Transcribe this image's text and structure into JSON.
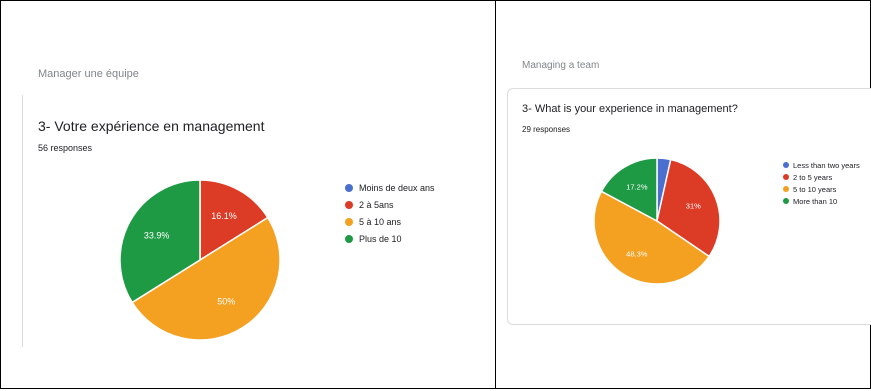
{
  "chart_data": [
    {
      "type": "pie",
      "section": "Manager une équipe",
      "title": "3- Votre expérience en management",
      "responses": "56 responses",
      "legend": [
        "Moins de deux ans",
        "2 à 5ans",
        "5 à 10 ans",
        "Plus de 10"
      ],
      "values": [
        0,
        16.1,
        50,
        33.9
      ],
      "labels": [
        "",
        "16.1%",
        "50%",
        "33.9%"
      ],
      "colors": [
        "#4a6fcf",
        "#dc3b26",
        "#f4a020",
        "#1f9a44"
      ],
      "legend_position": "right"
    },
    {
      "type": "pie",
      "section": "Managing a team",
      "title": "3- What is your experience in management?",
      "responses": "29 responses",
      "legend": [
        "Less than two years",
        "2 to 5 years",
        "5 to 10 years",
        "More than 10"
      ],
      "values": [
        3.5,
        31,
        48.3,
        17.2
      ],
      "labels": [
        "",
        "31%",
        "48.3%",
        "17.2%"
      ],
      "colors": [
        "#4a6fcf",
        "#dc3b26",
        "#f4a020",
        "#1f9a44"
      ],
      "legend_position": "right"
    }
  ]
}
